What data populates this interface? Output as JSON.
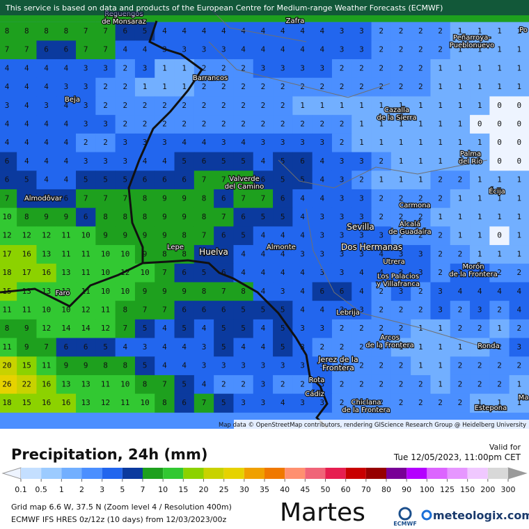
{
  "banner": "This service is based on data and products of the European Centre for Medium-range Weather Forecasts (ECMWF)",
  "attribution": "Map data © OpenStreetMap contributors, rendering GIScience Research Group @ Heidelberg University",
  "places": [
    {
      "lines": [
        "Reguengos",
        "de Monsaraz"
      ]
    },
    {
      "lines": [
        "Zafra"
      ]
    },
    {
      "lines": [
        "Peñarroya-",
        "Pueblonuevo"
      ]
    },
    {
      "lines": [
        "Po"
      ]
    },
    {
      "lines": [
        "Barrancos"
      ]
    },
    {
      "lines": [
        "Beja"
      ]
    },
    {
      "lines": [
        "Cazalla",
        "de la Sierra"
      ]
    },
    {
      "lines": [
        "Palma",
        "del Río"
      ]
    },
    {
      "lines": [
        "Valverde",
        "del Camino"
      ]
    },
    {
      "lines": [
        "Écija"
      ]
    },
    {
      "lines": [
        "Almodôvar"
      ]
    },
    {
      "lines": [
        "Carmona"
      ]
    },
    {
      "lines": [
        "Sevilla"
      ]
    },
    {
      "lines": [
        "Alcalá",
        "de Guadaíra"
      ]
    },
    {
      "lines": [
        "Lepe"
      ]
    },
    {
      "lines": [
        "Huelva"
      ]
    },
    {
      "lines": [
        "Almonte"
      ]
    },
    {
      "lines": [
        "Dos Hermanas"
      ]
    },
    {
      "lines": [
        "Utrera"
      ]
    },
    {
      "lines": [
        "Morón",
        "de la Frontera"
      ]
    },
    {
      "lines": [
        "Faro"
      ]
    },
    {
      "lines": [
        "Los Palacios",
        "y Villafranca"
      ]
    },
    {
      "lines": [
        "Lebrija"
      ]
    },
    {
      "lines": [
        "Arcos",
        "de la Frontera"
      ]
    },
    {
      "lines": [
        "Ronda"
      ]
    },
    {
      "lines": [
        "Jerez de la",
        "Frontera"
      ]
    },
    {
      "lines": [
        "Rota"
      ]
    },
    {
      "lines": [
        "Cádiz"
      ]
    },
    {
      "lines": [
        "Chiclana",
        "de la Frontera"
      ]
    },
    {
      "lines": [
        "Estepona"
      ]
    },
    {
      "lines": [
        "Ma"
      ]
    }
  ],
  "grid": {
    "rows": [
      [
        8,
        8,
        8,
        8,
        7,
        7,
        6,
        5,
        4,
        4,
        4,
        4,
        4,
        4,
        4,
        4,
        4,
        3,
        3,
        2,
        2,
        2,
        2,
        1,
        1,
        1,
        1
      ],
      [
        7,
        7,
        6,
        6,
        7,
        7,
        4,
        4,
        3,
        3,
        3,
        3,
        4,
        4,
        4,
        4,
        4,
        3,
        3,
        2,
        2,
        2,
        2,
        1,
        1,
        1,
        1
      ],
      [
        4,
        4,
        4,
        4,
        3,
        3,
        2,
        3,
        1,
        1,
        2,
        2,
        2,
        3,
        3,
        3,
        3,
        2,
        2,
        2,
        2,
        2,
        1,
        1,
        1,
        1,
        1
      ],
      [
        4,
        4,
        4,
        3,
        3,
        2,
        2,
        1,
        1,
        1,
        2,
        2,
        2,
        2,
        2,
        2,
        2,
        2,
        2,
        2,
        2,
        2,
        1,
        1,
        1,
        1,
        1
      ],
      [
        3,
        4,
        3,
        4,
        3,
        2,
        2,
        2,
        2,
        2,
        2,
        2,
        2,
        2,
        2,
        1,
        1,
        1,
        1,
        1,
        1,
        1,
        1,
        1,
        1,
        0,
        0
      ],
      [
        4,
        4,
        4,
        4,
        3,
        3,
        2,
        2,
        2,
        2,
        2,
        2,
        2,
        2,
        2,
        2,
        2,
        2,
        1,
        1,
        1,
        1,
        1,
        1,
        0,
        0,
        0
      ],
      [
        4,
        4,
        4,
        4,
        2,
        2,
        3,
        3,
        3,
        4,
        4,
        3,
        4,
        3,
        3,
        3,
        3,
        2,
        1,
        1,
        1,
        1,
        1,
        1,
        1,
        0,
        0
      ],
      [
        6,
        4,
        4,
        4,
        3,
        3,
        3,
        4,
        4,
        5,
        6,
        5,
        5,
        4,
        5,
        6,
        4,
        3,
        3,
        2,
        1,
        1,
        1,
        1,
        1,
        0,
        0
      ],
      [
        6,
        5,
        4,
        4,
        5,
        5,
        5,
        6,
        6,
        6,
        7,
        7,
        8,
        6,
        5,
        5,
        4,
        3,
        2,
        1,
        1,
        1,
        2,
        2,
        1,
        1,
        1
      ],
      [
        7,
        6,
        6,
        6,
        7,
        7,
        7,
        8,
        9,
        9,
        8,
        6,
        7,
        7,
        6,
        4,
        4,
        3,
        3,
        2,
        2,
        2,
        2,
        1,
        1,
        1,
        1
      ],
      [
        10,
        8,
        9,
        9,
        6,
        8,
        8,
        8,
        9,
        9,
        8,
        7,
        6,
        5,
        5,
        4,
        3,
        3,
        3,
        2,
        2,
        2,
        1,
        1,
        1,
        1,
        1
      ],
      [
        12,
        12,
        12,
        11,
        10,
        9,
        9,
        9,
        9,
        8,
        7,
        6,
        5,
        4,
        4,
        4,
        3,
        3,
        3,
        3,
        2,
        2,
        2,
        1,
        1,
        0,
        1
      ],
      [
        17,
        16,
        13,
        11,
        11,
        10,
        10,
        9,
        8,
        8,
        6,
        5,
        4,
        4,
        4,
        3,
        3,
        3,
        3,
        4,
        3,
        3,
        2,
        2,
        1,
        1,
        1
      ],
      [
        18,
        17,
        16,
        13,
        11,
        10,
        12,
        10,
        7,
        6,
        5,
        6,
        4,
        4,
        4,
        4,
        3,
        3,
        4,
        4,
        3,
        3,
        2,
        3,
        4,
        2,
        2
      ],
      [
        15,
        13,
        13,
        12,
        11,
        10,
        10,
        9,
        9,
        9,
        8,
        7,
        8,
        4,
        3,
        4,
        6,
        6,
        4,
        2,
        3,
        2,
        3,
        4,
        4,
        4,
        4
      ],
      [
        11,
        11,
        10,
        10,
        12,
        11,
        8,
        7,
        7,
        6,
        6,
        6,
        5,
        5,
        5,
        4,
        4,
        3,
        3,
        2,
        2,
        2,
        3,
        2,
        3,
        2,
        4
      ],
      [
        8,
        9,
        12,
        14,
        14,
        12,
        7,
        5,
        4,
        5,
        4,
        5,
        5,
        4,
        5,
        3,
        3,
        2,
        2,
        2,
        2,
        1,
        1,
        2,
        2,
        1,
        2
      ],
      [
        11,
        9,
        7,
        6,
        6,
        5,
        4,
        3,
        4,
        4,
        3,
        5,
        4,
        4,
        5,
        3,
        2,
        2,
        2,
        2,
        1,
        1,
        1,
        1,
        1,
        2,
        3
      ],
      [
        20,
        15,
        11,
        9,
        9,
        8,
        8,
        5,
        4,
        4,
        3,
        3,
        3,
        3,
        3,
        3,
        3,
        2,
        2,
        2,
        2,
        1,
        1,
        2,
        2,
        2,
        2
      ],
      [
        26,
        22,
        16,
        13,
        13,
        11,
        10,
        8,
        7,
        5,
        4,
        2,
        2,
        3,
        2,
        2,
        3,
        2,
        2,
        2,
        2,
        2,
        1,
        2,
        2,
        2,
        1
      ],
      [
        18,
        15,
        16,
        16,
        13,
        12,
        11,
        10,
        8,
        6,
        7,
        5,
        3,
        3,
        4,
        3,
        3,
        2,
        2,
        2,
        2,
        2,
        2,
        2,
        1,
        1,
        1
      ]
    ]
  },
  "legend": {
    "title": "Precipitation, 24h (mm)",
    "labels": [
      0.1,
      0.5,
      1,
      2,
      3,
      5,
      7,
      10,
      15,
      20,
      25,
      30,
      35,
      40,
      45,
      50,
      60,
      70,
      80,
      90,
      100,
      125,
      150,
      200,
      300
    ],
    "colors": [
      "#c4dfff",
      "#9ccbff",
      "#72afff",
      "#4b8fff",
      "#2266ee",
      "#0b3a9e",
      "#1ea01e",
      "#32c832",
      "#8cd200",
      "#c8d200",
      "#e6d200",
      "#f0a000",
      "#f07800",
      "#ff9070",
      "#f06478",
      "#e61e50",
      "#c80000",
      "#960000",
      "#780096",
      "#b400ff",
      "#dc64ff",
      "#e696ff",
      "#f0c8ff",
      "#d8d8d8"
    ],
    "under_color": "#eef4ff",
    "over_color": "#9a9a9a"
  },
  "valid_label": "Valid for",
  "valid_time": "Tue 12/05/2023, 11:00pm CET",
  "grid_info": "Grid map 6.6 W, 37.5 N (Zoom level 4 / Resolution 400m)",
  "model_info": "ECMWF IFS HRES 0z/12z (10 days) from 12/03/2023/00z",
  "day": "Martes",
  "logo_ecmwf": "ECMWF",
  "logo_meteologix": "meteologix.com"
}
